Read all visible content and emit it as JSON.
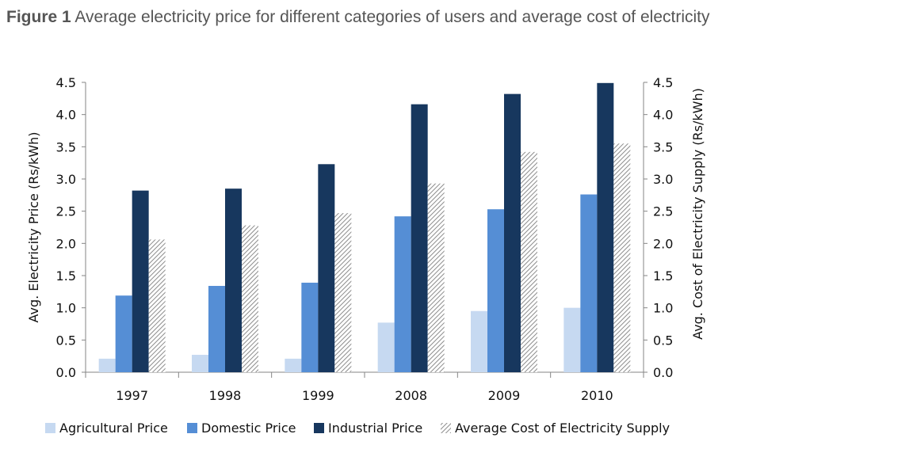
{
  "figure": {
    "label": "Figure 1",
    "caption": "Average electricity price for different categories of users and average cost of electricity"
  },
  "chart_data": {
    "type": "bar",
    "categories": [
      "1997",
      "1998",
      "1999",
      "2008",
      "2009",
      "2010"
    ],
    "series": [
      {
        "name": "Agricultural Price",
        "values": [
          0.21,
          0.27,
          0.21,
          0.77,
          0.95,
          1.0
        ],
        "color": "#c6d9f1"
      },
      {
        "name": "Domestic Price",
        "values": [
          1.19,
          1.34,
          1.39,
          2.42,
          2.53,
          2.76
        ],
        "color": "#558ed5"
      },
      {
        "name": "Industrial Price",
        "values": [
          2.82,
          2.85,
          3.23,
          4.16,
          4.32,
          4.49
        ],
        "color": "#17375e"
      },
      {
        "name": "Average Cost of Electricity Supply",
        "values": [
          2.06,
          2.28,
          2.47,
          2.93,
          3.42,
          3.55
        ],
        "color": "#bfbfbf",
        "pattern": "diagonal-hatch"
      }
    ],
    "ylabel": "Avg.  Electricity Price (Rs/kWh)",
    "y2label": "Avg. Cost of Electricity Supply (Rs/kWh)",
    "ylim": [
      0,
      4.5
    ],
    "y2lim": [
      0,
      4.5
    ],
    "yticks": [
      "0.0",
      "0.5",
      "1.0",
      "1.5",
      "2.0",
      "2.5",
      "3.0",
      "3.5",
      "4.0",
      "4.5"
    ],
    "grid": false,
    "legend": "bottom"
  }
}
